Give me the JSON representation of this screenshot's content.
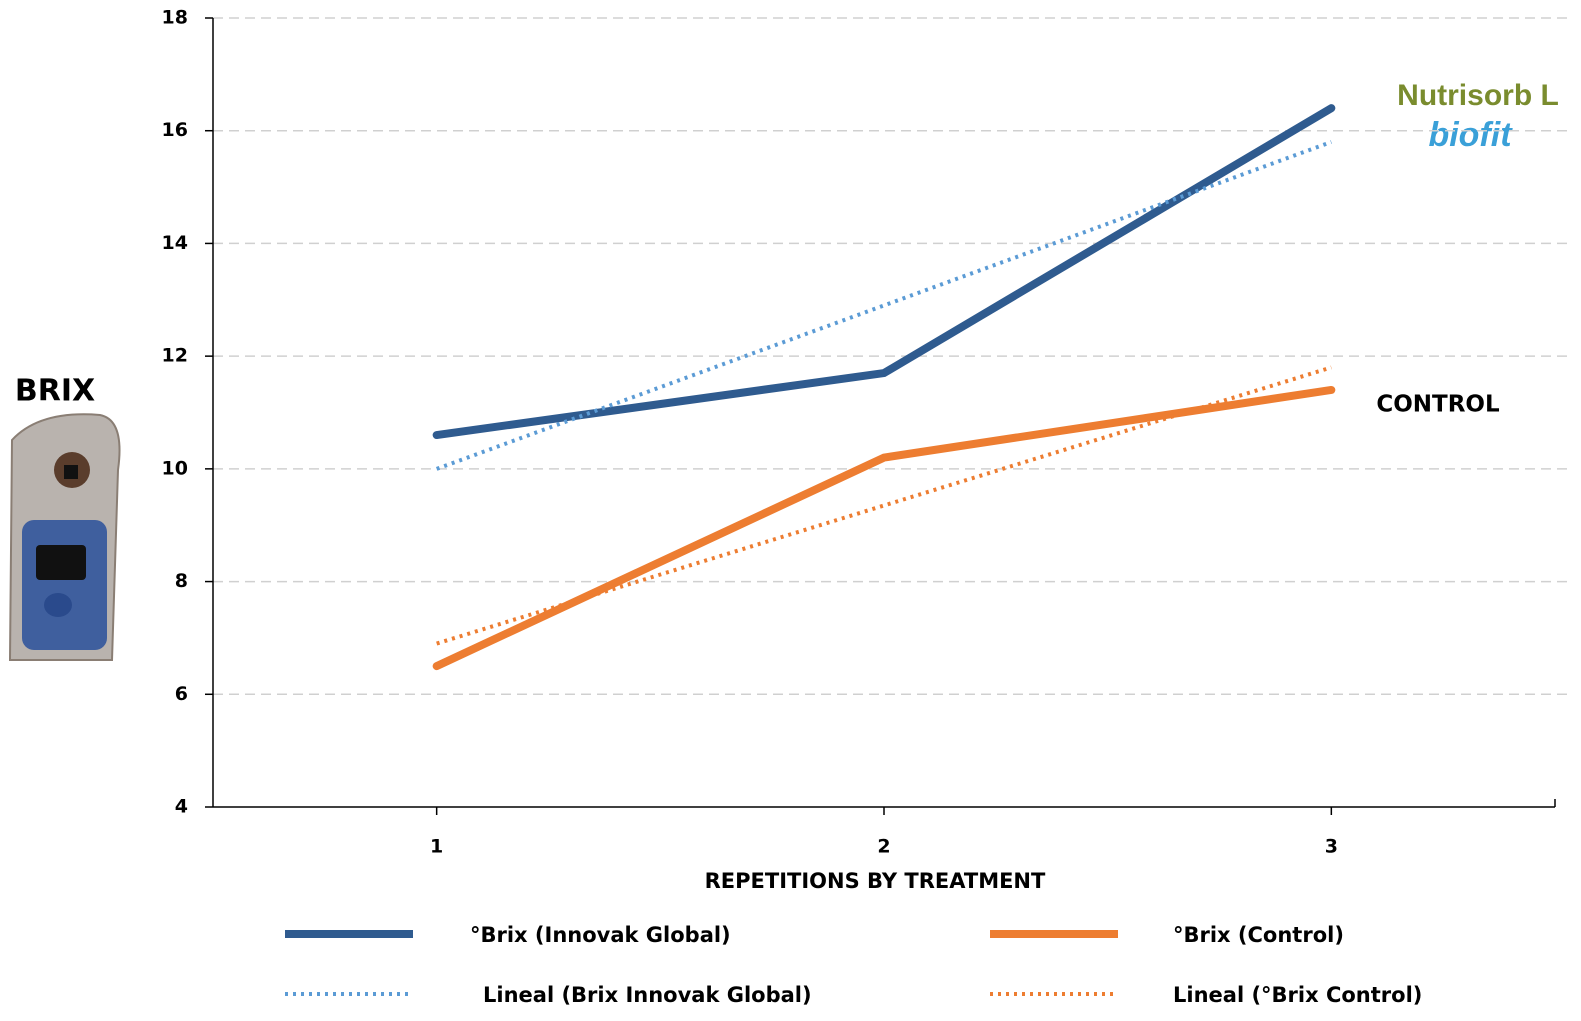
{
  "chart_data": {
    "type": "line",
    "y_label": "BRIX",
    "x_label": "REPETITIONS BY TREATMENT",
    "annotation": "CONTROL",
    "logo": {
      "top": "Nutrisorb L",
      "bottom": "biofit"
    },
    "x": [
      1,
      2,
      3
    ],
    "xlim": [
      0.5,
      3.5
    ],
    "xticks": [
      1,
      2,
      3
    ],
    "ylim": [
      4,
      18
    ],
    "yticks": [
      4,
      6,
      8,
      10,
      12,
      14,
      16,
      18
    ],
    "grid": true,
    "legend": "bottom",
    "series": [
      {
        "name": "°Brix (Innovak Global)",
        "color": "#2f5b8f",
        "style": "solid",
        "values": [
          10.6,
          11.7,
          16.4
        ]
      },
      {
        "name": "°Brix (Control)",
        "color": "#ed7d31",
        "style": "solid",
        "values": [
          6.5,
          10.2,
          11.4
        ]
      },
      {
        "name": "Lineal (Brix Innovak Global)",
        "color": "#5b9bd5",
        "style": "dotted",
        "values": [
          10.0,
          12.9,
          15.8
        ]
      },
      {
        "name": "Lineal (°Brix Control)",
        "color": "#ed7d31",
        "style": "dotted",
        "values": [
          6.9,
          9.35,
          11.8
        ]
      }
    ]
  }
}
